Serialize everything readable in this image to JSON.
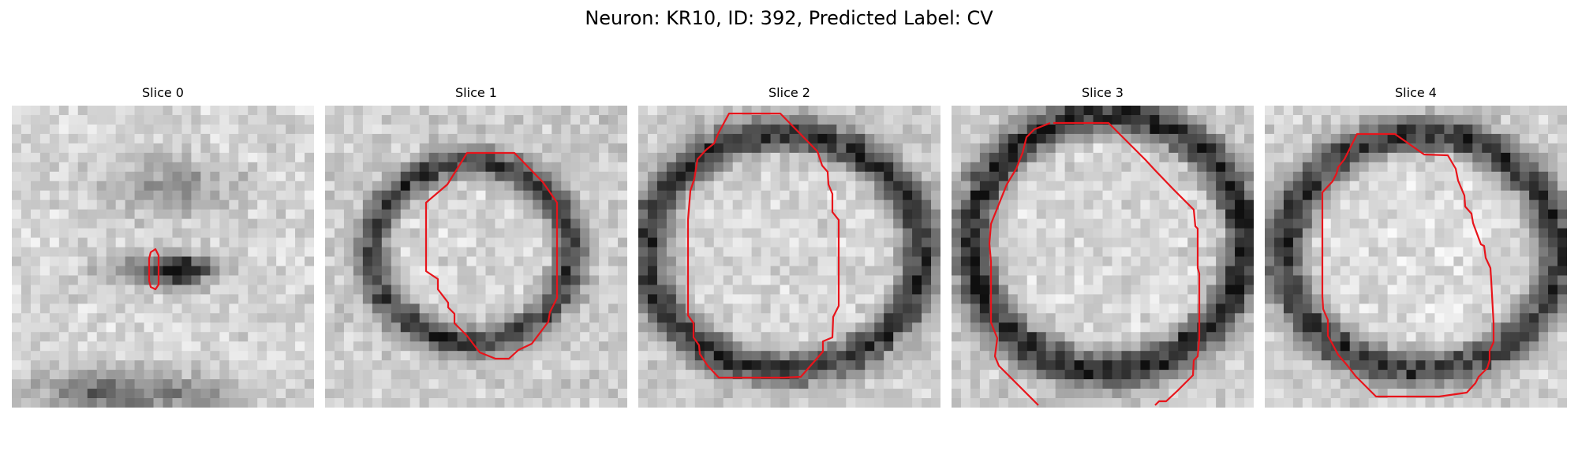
{
  "figure": {
    "title": "Neuron: KR10, ID: 392, Predicted Label: CV",
    "panels": [
      {
        "title": "Slice 0"
      },
      {
        "title": "Slice 1"
      },
      {
        "title": "Slice 2"
      },
      {
        "title": "Slice 3"
      },
      {
        "title": "Slice 4"
      }
    ],
    "colors": {
      "contour": "#e8141b",
      "background": "#ffffff"
    }
  }
}
